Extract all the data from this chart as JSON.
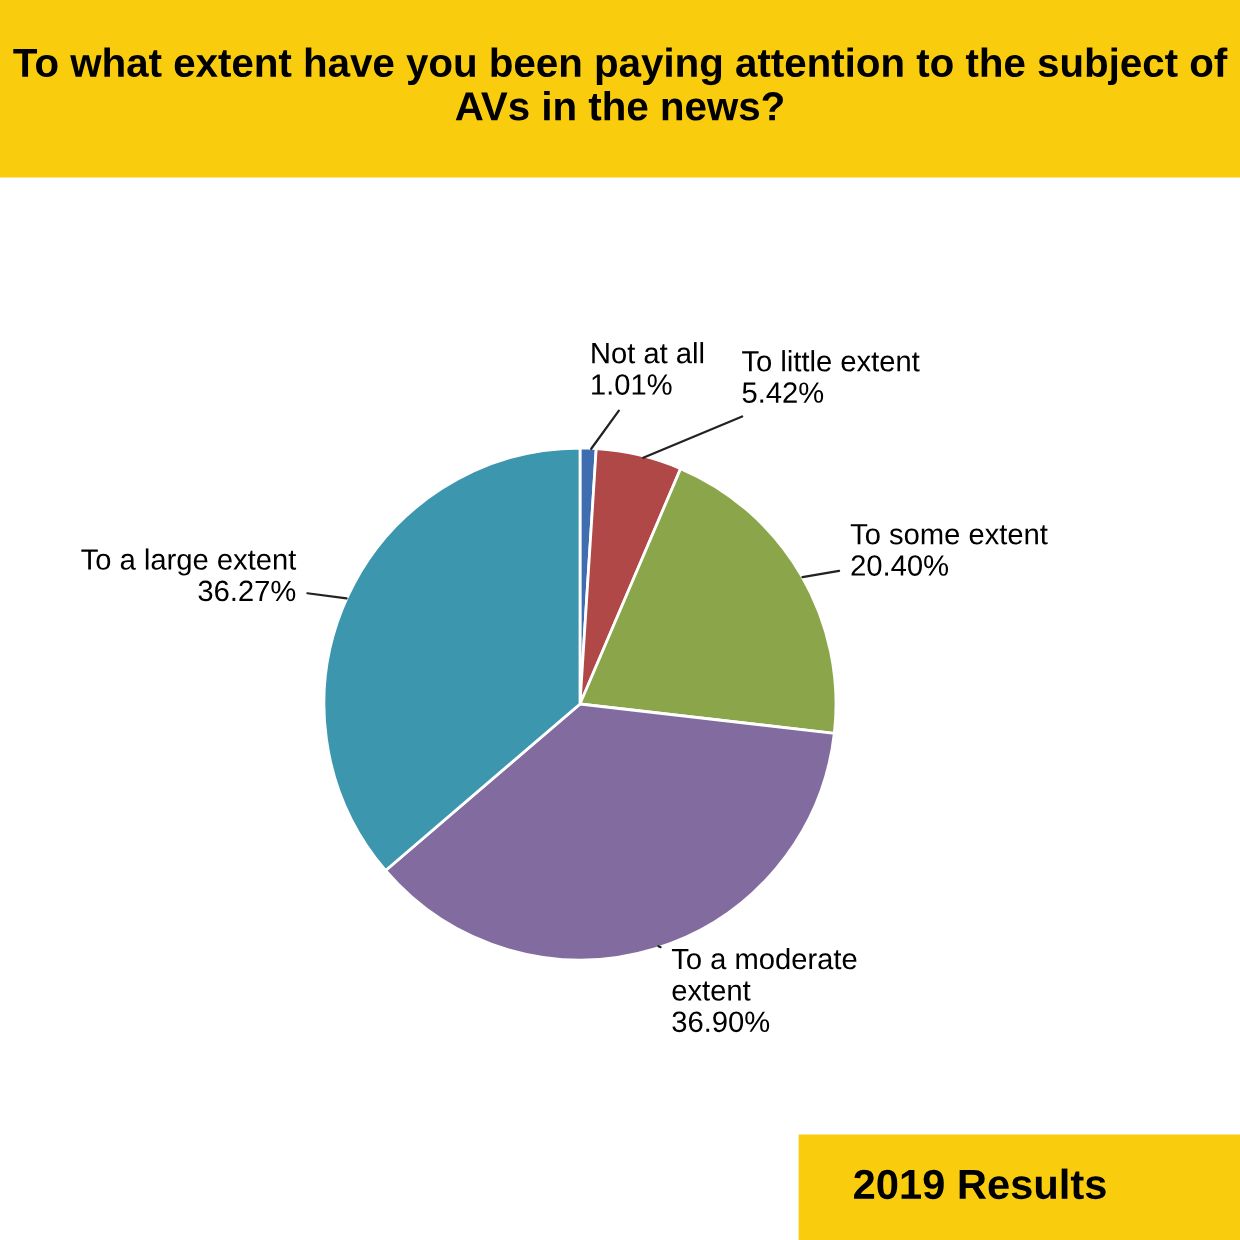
{
  "chart_data": {
    "type": "pie",
    "title": "To what extent have you been paying attention to the subject of AVs in the news?",
    "categories": [
      "Not at all",
      "To little extent",
      "To some extent",
      "To a moderate\nextent",
      "To a large extent"
    ],
    "values": [
      1.01,
      5.42,
      20.4,
      36.9,
      36.27
    ],
    "value_labels": [
      "1.01%",
      "5.42%",
      "20.40%",
      "36.90%",
      "36.27%"
    ],
    "colors": [
      "#3f6db0",
      "#b04848",
      "#8ba54a",
      "#826c9f",
      "#3c96ae"
    ],
    "annotations": [
      "2019 Results"
    ],
    "legend": false
  }
}
